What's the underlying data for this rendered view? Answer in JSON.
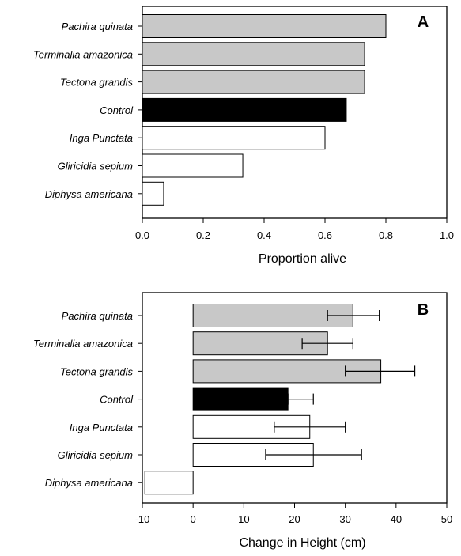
{
  "chart_data": [
    {
      "type": "bar",
      "orientation": "horizontal",
      "panel_label": "A",
      "categories": [
        "Pachira quinata",
        "Terminalia amazonica",
        "Tectona  grandis",
        "Control",
        "Inga Punctata",
        "Gliricidia sepium",
        "Diphysa americana"
      ],
      "values": [
        0.8,
        0.73,
        0.73,
        0.67,
        0.6,
        0.33,
        0.07
      ],
      "bar_fill": [
        "#c8c8c8",
        "#c8c8c8",
        "#c8c8c8",
        "#000000",
        "#ffffff",
        "#ffffff",
        "#ffffff"
      ],
      "xlabel": "Proportion alive",
      "xlim": [
        0.0,
        1.0
      ],
      "xticks": [
        "0.0",
        "0.2",
        "0.4",
        "0.6",
        "0.8",
        "1.0"
      ],
      "grid": false
    },
    {
      "type": "bar",
      "orientation": "horizontal",
      "panel_label": "B",
      "categories": [
        "Pachira quinata",
        "Terminalia amazonica",
        "Tectona  grandis",
        "Control",
        "Inga Punctata",
        "Gliricidia sepium",
        "Diphysa americana"
      ],
      "values": [
        31.5,
        26.5,
        37.0,
        18.7,
        23.0,
        23.7,
        -9.5
      ],
      "error_low": [
        26.5,
        21.5,
        30.0,
        18.7,
        16.0,
        14.3,
        null
      ],
      "error_high": [
        36.7,
        31.5,
        43.7,
        23.7,
        30.0,
        33.2,
        null
      ],
      "bar_fill": [
        "#c8c8c8",
        "#c8c8c8",
        "#c8c8c8",
        "#000000",
        "#ffffff",
        "#ffffff",
        "#ffffff"
      ],
      "xlabel": "Change in Height (cm)",
      "xlim": [
        -10,
        50
      ],
      "xticks": [
        "-10",
        "0",
        "10",
        "20",
        "30",
        "40",
        "50"
      ],
      "grid": false
    }
  ]
}
